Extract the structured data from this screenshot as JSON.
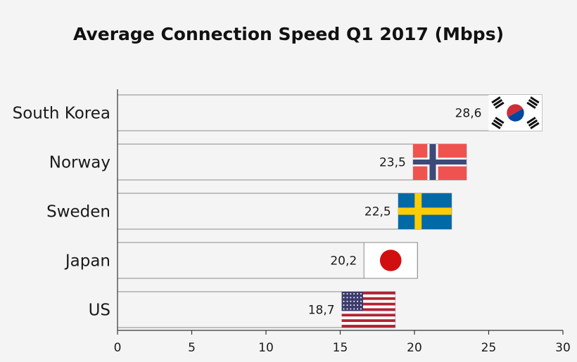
{
  "chart_data": {
    "type": "bar",
    "orientation": "horizontal",
    "title": "Average Connection Speed Q1 2017 (Mbps)",
    "xlabel": "",
    "ylabel": "",
    "categories": [
      "South Korea",
      "Norway",
      "Sweden",
      "Japan",
      "US"
    ],
    "values": [
      28.6,
      23.5,
      22.5,
      20.2,
      18.7
    ],
    "value_labels": [
      "28,6",
      "23,5",
      "22,5",
      "20,2",
      "18,7"
    ],
    "flags": [
      "south-korea-flag",
      "norway-flag",
      "sweden-flag",
      "japan-flag",
      "us-flag"
    ],
    "xlim": [
      0,
      30
    ],
    "xticks": [
      0,
      5,
      10,
      15,
      20,
      25,
      30
    ],
    "grid": false,
    "bar_fill": "#f4f4f4",
    "bar_stroke": "#8a8a8a"
  }
}
